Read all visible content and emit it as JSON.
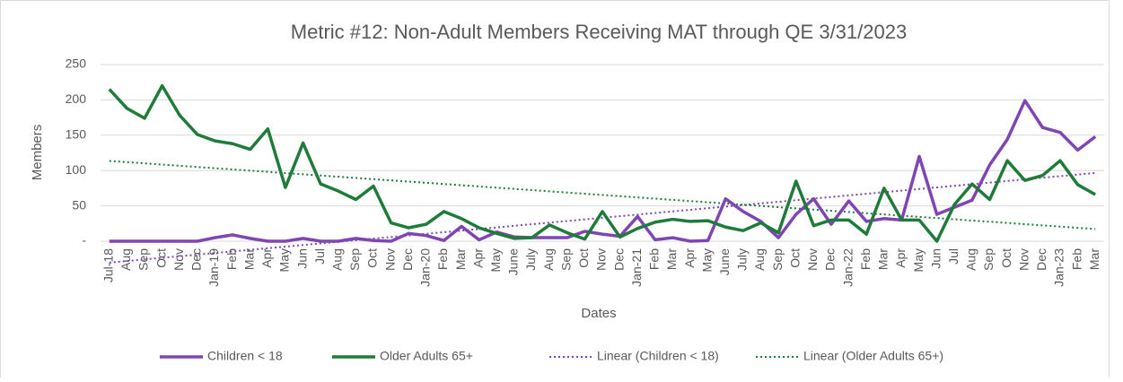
{
  "chart_data": {
    "type": "line",
    "title": "Metric #12: Non-Adult Members Receiving MAT through QE 3/31/2023",
    "x_label": "Dates",
    "y_label": "Members",
    "categories": [
      "Jul-18",
      "Aug",
      "Sep",
      "Oct",
      "Nov",
      "Dec",
      "Jan-19",
      "Feb",
      "Mar",
      "Apr",
      "May",
      "Jun",
      "Jul",
      "Aug",
      "Sep",
      "Oct",
      "Nov",
      "Dec",
      "Jan-20",
      "Feb",
      "Mar",
      "Apr",
      "May",
      "June",
      "July",
      "Aug",
      "Sep",
      "Oct",
      "Nov",
      "Dec",
      "Jan-21",
      "Feb",
      "Mar",
      "Apr",
      "May",
      "June",
      "July",
      "Aug",
      "Sep",
      "Oct",
      "Nov",
      "Dec",
      "Jan-22",
      "Feb",
      "Mar",
      "Apr",
      "May",
      "Jun",
      "Jul",
      "Aug",
      "Sep",
      "Oct",
      "Nov",
      "Dec",
      "Jan-23",
      "Feb",
      "Mar"
    ],
    "series": [
      {
        "name": "Children < 18",
        "color": "#7f45b3",
        "values": [
          0,
          0,
          0,
          0,
          0,
          0,
          5,
          9,
          4,
          0,
          0,
          4,
          0,
          0,
          4,
          1,
          0,
          11,
          8,
          1,
          21,
          2,
          13,
          6,
          5,
          5,
          5,
          14,
          10,
          7,
          35,
          2,
          5,
          0,
          1,
          60,
          42,
          28,
          5,
          38,
          60,
          24,
          57,
          28,
          32,
          30,
          120,
          38,
          48,
          58,
          108,
          144,
          199,
          161,
          154,
          129,
          148
        ],
        "trendline": {
          "name": "Linear (Children < 18)",
          "type": "linear"
        }
      },
      {
        "name": "Older Adults 65+",
        "color": "#1e7b3a",
        "values": [
          215,
          188,
          174,
          220,
          178,
          151,
          142,
          138,
          130,
          159,
          76,
          139,
          81,
          71,
          59,
          78,
          26,
          19,
          24,
          42,
          32,
          19,
          11,
          4,
          5,
          23,
          12,
          3,
          42,
          6,
          18,
          27,
          31,
          28,
          29,
          20,
          15,
          26,
          12,
          85,
          22,
          30,
          30,
          10,
          75,
          30,
          30,
          0,
          52,
          81,
          59,
          114,
          86,
          93,
          114,
          80,
          66
        ],
        "trendline": {
          "name": "Linear (Older Adults 65+)",
          "type": "linear"
        }
      }
    ],
    "ylim": [
      0,
      250
    ],
    "yticks": [
      {
        "value": 0,
        "label": "-"
      },
      50,
      100,
      150,
      200,
      250
    ],
    "grid": true,
    "legend": "bottom"
  }
}
